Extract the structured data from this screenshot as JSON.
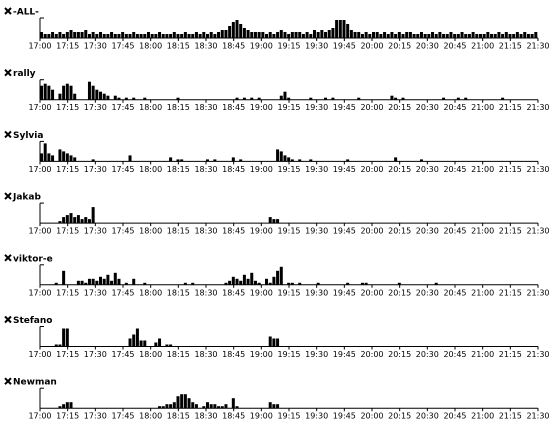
{
  "chart_data": [
    {
      "type": "bar",
      "title": "-ALL-",
      "color": "#000000",
      "ylim": [
        0,
        10
      ],
      "xlim": [
        0,
        270
      ],
      "xticks": [
        {
          "value": 0,
          "label": "17:00"
        },
        {
          "value": 15,
          "label": "17:15"
        },
        {
          "value": 30,
          "label": "17:30"
        },
        {
          "value": 45,
          "label": "17:45"
        },
        {
          "value": 60,
          "label": "18:00"
        },
        {
          "value": 75,
          "label": "18:15"
        },
        {
          "value": 90,
          "label": "18:30"
        },
        {
          "value": 105,
          "label": "18:45"
        },
        {
          "value": 120,
          "label": "19:00"
        },
        {
          "value": 135,
          "label": "19:15"
        },
        {
          "value": 150,
          "label": "19:30"
        },
        {
          "value": 165,
          "label": "19:45"
        },
        {
          "value": 180,
          "label": "20:00"
        },
        {
          "value": 195,
          "label": "20:15"
        },
        {
          "value": 210,
          "label": "20:30"
        },
        {
          "value": 225,
          "label": "20:45"
        },
        {
          "value": 240,
          "label": "21:00"
        },
        {
          "value": 255,
          "label": "21:15"
        },
        {
          "value": 270,
          "label": "21:30"
        }
      ],
      "x": [
        0,
        2,
        4,
        6,
        8,
        10,
        12,
        14,
        16,
        18,
        20,
        22,
        24,
        26,
        28,
        30,
        32,
        34,
        36,
        38,
        40,
        42,
        44,
        46,
        48,
        50,
        52,
        54,
        56,
        58,
        60,
        62,
        64,
        66,
        68,
        70,
        72,
        74,
        76,
        78,
        80,
        82,
        84,
        86,
        88,
        90,
        92,
        94,
        96,
        98,
        100,
        102,
        104,
        106,
        108,
        110,
        112,
        114,
        116,
        118,
        120,
        122,
        124,
        126,
        128,
        130,
        132,
        134,
        136,
        138,
        140,
        142,
        144,
        146,
        148,
        150,
        152,
        154,
        156,
        158,
        160,
        162,
        164,
        166,
        168,
        170,
        172,
        174,
        176,
        178,
        180,
        182,
        184,
        186,
        188,
        190,
        192,
        194,
        196,
        198,
        200,
        202,
        204,
        206,
        208,
        210,
        212,
        214,
        216,
        218,
        220,
        222,
        224,
        226,
        228,
        230,
        232,
        234,
        236,
        238,
        240,
        242,
        244,
        246,
        248,
        250,
        252,
        254,
        256,
        258,
        260,
        262,
        264,
        266,
        268
      ],
      "values": [
        3,
        2,
        2,
        3,
        2,
        3,
        2,
        3,
        4,
        3,
        3,
        3,
        4,
        2,
        3,
        2,
        3,
        2,
        2,
        3,
        2,
        2,
        3,
        2,
        2,
        3,
        2,
        2,
        2,
        3,
        2,
        2,
        3,
        2,
        2,
        2,
        3,
        2,
        2,
        3,
        2,
        2,
        3,
        2,
        3,
        2,
        3,
        2,
        3,
        4,
        4,
        6,
        8,
        9,
        7,
        5,
        4,
        3,
        3,
        3,
        3,
        2,
        3,
        2,
        3,
        4,
        3,
        2,
        3,
        3,
        3,
        2,
        3,
        2,
        4,
        3,
        4,
        3,
        4,
        5,
        9,
        9,
        9,
        7,
        4,
        3,
        3,
        2,
        3,
        2,
        3,
        3,
        2,
        3,
        2,
        3,
        2,
        3,
        2,
        3,
        3,
        2,
        2,
        3,
        2,
        2,
        3,
        2,
        3,
        2,
        2,
        3,
        2,
        2,
        3,
        2,
        2,
        3,
        2,
        2,
        2,
        3,
        2,
        2,
        3,
        2,
        3,
        2,
        2,
        3,
        2,
        3,
        2,
        2,
        3
      ]
    },
    {
      "type": "bar",
      "title": "rally",
      "color": "#000000",
      "ylim": [
        0,
        10
      ],
      "xlim": [
        0,
        270
      ],
      "xticks": [
        {
          "value": 0,
          "label": "17:00"
        },
        {
          "value": 15,
          "label": "17:15"
        },
        {
          "value": 30,
          "label": "17:30"
        },
        {
          "value": 45,
          "label": "17:45"
        },
        {
          "value": 60,
          "label": "18:00"
        },
        {
          "value": 75,
          "label": "18:15"
        },
        {
          "value": 90,
          "label": "18:30"
        },
        {
          "value": 105,
          "label": "18:45"
        },
        {
          "value": 120,
          "label": "19:00"
        },
        {
          "value": 135,
          "label": "19:15"
        },
        {
          "value": 150,
          "label": "19:30"
        },
        {
          "value": 165,
          "label": "19:45"
        },
        {
          "value": 180,
          "label": "20:00"
        },
        {
          "value": 195,
          "label": "20:15"
        },
        {
          "value": 210,
          "label": "20:30"
        },
        {
          "value": 225,
          "label": "20:45"
        },
        {
          "value": 240,
          "label": "21:00"
        },
        {
          "value": 255,
          "label": "21:15"
        },
        {
          "value": 270,
          "label": "21:30"
        }
      ],
      "x": [
        0,
        2,
        4,
        6,
        10,
        12,
        14,
        16,
        18,
        26,
        28,
        30,
        32,
        34,
        36,
        40,
        42,
        46,
        50,
        56,
        74,
        106,
        110,
        114,
        118,
        130,
        132,
        134,
        146,
        154,
        158,
        172,
        190,
        192,
        196,
        218,
        226,
        230,
        250
      ],
      "values": [
        7,
        8,
        7,
        5,
        3,
        7,
        8,
        7,
        3,
        9,
        7,
        5,
        4,
        3,
        2,
        2,
        1,
        1,
        1,
        1,
        1,
        1,
        1,
        1,
        1,
        2,
        4,
        1,
        1,
        1,
        1,
        1,
        2,
        1,
        1,
        1,
        1,
        1,
        1
      ]
    },
    {
      "type": "bar",
      "title": "Sylvia",
      "color": "#000000",
      "ylim": [
        0,
        10
      ],
      "xlim": [
        0,
        270
      ],
      "xticks": [
        {
          "value": 0,
          "label": "17:00"
        },
        {
          "value": 15,
          "label": "17:15"
        },
        {
          "value": 30,
          "label": "17:30"
        },
        {
          "value": 45,
          "label": "17:45"
        },
        {
          "value": 60,
          "label": "18:00"
        },
        {
          "value": 75,
          "label": "18:15"
        },
        {
          "value": 90,
          "label": "18:30"
        },
        {
          "value": 105,
          "label": "18:45"
        },
        {
          "value": 120,
          "label": "19:00"
        },
        {
          "value": 135,
          "label": "19:15"
        },
        {
          "value": 150,
          "label": "19:30"
        },
        {
          "value": 165,
          "label": "19:45"
        },
        {
          "value": 180,
          "label": "20:00"
        },
        {
          "value": 195,
          "label": "20:15"
        },
        {
          "value": 210,
          "label": "20:30"
        },
        {
          "value": 225,
          "label": "20:45"
        },
        {
          "value": 240,
          "label": "21:00"
        },
        {
          "value": 255,
          "label": "21:15"
        },
        {
          "value": 270,
          "label": "21:30"
        }
      ],
      "x": [
        0,
        2,
        4,
        6,
        10,
        12,
        14,
        16,
        18,
        28,
        48,
        70,
        74,
        76,
        90,
        94,
        104,
        108,
        128,
        130,
        132,
        134,
        136,
        140,
        146,
        166,
        192,
        206
      ],
      "values": [
        4,
        9,
        4,
        3,
        6,
        5,
        4,
        3,
        2,
        1,
        3,
        2,
        1,
        1,
        1,
        1,
        2,
        1,
        6,
        5,
        3,
        2,
        1,
        1,
        1,
        1,
        2,
        1
      ]
    },
    {
      "type": "bar",
      "title": "Jakab",
      "color": "#000000",
      "ylim": [
        0,
        10
      ],
      "xlim": [
        0,
        270
      ],
      "xticks": [
        {
          "value": 0,
          "label": "17:00"
        },
        {
          "value": 15,
          "label": "17:15"
        },
        {
          "value": 30,
          "label": "17:30"
        },
        {
          "value": 45,
          "label": "17:45"
        },
        {
          "value": 60,
          "label": "18:00"
        },
        {
          "value": 75,
          "label": "18:15"
        },
        {
          "value": 90,
          "label": "18:30"
        },
        {
          "value": 105,
          "label": "18:45"
        },
        {
          "value": 120,
          "label": "19:00"
        },
        {
          "value": 135,
          "label": "19:15"
        },
        {
          "value": 150,
          "label": "19:30"
        },
        {
          "value": 165,
          "label": "19:45"
        },
        {
          "value": 180,
          "label": "20:00"
        },
        {
          "value": 195,
          "label": "20:15"
        },
        {
          "value": 210,
          "label": "20:30"
        },
        {
          "value": 225,
          "label": "20:45"
        },
        {
          "value": 240,
          "label": "21:00"
        },
        {
          "value": 255,
          "label": "21:15"
        },
        {
          "value": 270,
          "label": "21:30"
        }
      ],
      "x": [
        10,
        12,
        14,
        16,
        18,
        20,
        22,
        24,
        26,
        28,
        124,
        126,
        128
      ],
      "values": [
        1,
        3,
        4,
        5,
        3,
        4,
        2,
        3,
        2,
        8,
        3,
        2,
        2
      ]
    },
    {
      "type": "bar",
      "title": "viktor-e",
      "color": "#000000",
      "ylim": [
        0,
        10
      ],
      "xlim": [
        0,
        270
      ],
      "xticks": [
        {
          "value": 0,
          "label": "17:00"
        },
        {
          "value": 15,
          "label": "17:15"
        },
        {
          "value": 30,
          "label": "17:30"
        },
        {
          "value": 45,
          "label": "17:45"
        },
        {
          "value": 60,
          "label": "18:00"
        },
        {
          "value": 75,
          "label": "18:15"
        },
        {
          "value": 90,
          "label": "18:30"
        },
        {
          "value": 105,
          "label": "18:45"
        },
        {
          "value": 120,
          "label": "19:00"
        },
        {
          "value": 135,
          "label": "19:15"
        },
        {
          "value": 150,
          "label": "19:30"
        },
        {
          "value": 165,
          "label": "19:45"
        },
        {
          "value": 180,
          "label": "20:00"
        },
        {
          "value": 195,
          "label": "20:15"
        },
        {
          "value": 210,
          "label": "20:30"
        },
        {
          "value": 225,
          "label": "20:45"
        },
        {
          "value": 240,
          "label": "21:00"
        },
        {
          "value": 255,
          "label": "21:15"
        },
        {
          "value": 270,
          "label": "21:30"
        }
      ],
      "x": [
        8,
        12,
        20,
        22,
        24,
        26,
        28,
        30,
        32,
        34,
        36,
        38,
        40,
        42,
        46,
        50,
        56,
        78,
        82,
        100,
        102,
        104,
        106,
        108,
        110,
        112,
        114,
        116,
        118,
        122,
        124,
        126,
        128,
        130,
        134,
        136,
        140,
        150,
        166,
        174,
        176,
        194,
        214
      ],
      "values": [
        1,
        7,
        2,
        2,
        1,
        3,
        3,
        2,
        4,
        3,
        5,
        2,
        6,
        3,
        1,
        3,
        1,
        1,
        1,
        1,
        2,
        4,
        3,
        2,
        5,
        3,
        6,
        2,
        1,
        3,
        1,
        4,
        7,
        9,
        1,
        1,
        1,
        1,
        1,
        1,
        1,
        1,
        1
      ]
    },
    {
      "type": "bar",
      "title": "Stefano",
      "color": "#000000",
      "ylim": [
        0,
        10
      ],
      "xlim": [
        0,
        270
      ],
      "xticks": [
        {
          "value": 0,
          "label": "17:00"
        },
        {
          "value": 15,
          "label": "17:15"
        },
        {
          "value": 30,
          "label": "17:30"
        },
        {
          "value": 45,
          "label": "17:45"
        },
        {
          "value": 60,
          "label": "18:00"
        },
        {
          "value": 75,
          "label": "18:15"
        },
        {
          "value": 90,
          "label": "18:30"
        },
        {
          "value": 105,
          "label": "18:45"
        },
        {
          "value": 120,
          "label": "19:00"
        },
        {
          "value": 135,
          "label": "19:15"
        },
        {
          "value": 150,
          "label": "19:30"
        },
        {
          "value": 165,
          "label": "19:45"
        },
        {
          "value": 180,
          "label": "20:00"
        },
        {
          "value": 195,
          "label": "20:15"
        },
        {
          "value": 210,
          "label": "20:30"
        },
        {
          "value": 225,
          "label": "20:45"
        },
        {
          "value": 240,
          "label": "21:00"
        },
        {
          "value": 255,
          "label": "21:15"
        },
        {
          "value": 270,
          "label": "21:30"
        }
      ],
      "x": [
        8,
        10,
        12,
        14,
        48,
        50,
        52,
        54,
        56,
        62,
        64,
        68,
        70,
        124,
        126,
        128
      ],
      "values": [
        1,
        1,
        9,
        9,
        4,
        6,
        9,
        3,
        3,
        2,
        4,
        1,
        1,
        5,
        4,
        4
      ]
    },
    {
      "type": "bar",
      "title": "Newman",
      "color": "#000000",
      "ylim": [
        0,
        10
      ],
      "xlim": [
        0,
        270
      ],
      "xticks": [
        {
          "value": 0,
          "label": "17:00"
        },
        {
          "value": 15,
          "label": "17:15"
        },
        {
          "value": 30,
          "label": "17:30"
        },
        {
          "value": 45,
          "label": "17:45"
        },
        {
          "value": 60,
          "label": "18:00"
        },
        {
          "value": 75,
          "label": "18:15"
        },
        {
          "value": 90,
          "label": "18:30"
        },
        {
          "value": 105,
          "label": "18:45"
        },
        {
          "value": 120,
          "label": "19:00"
        },
        {
          "value": 135,
          "label": "19:15"
        },
        {
          "value": 150,
          "label": "19:30"
        },
        {
          "value": 165,
          "label": "19:45"
        },
        {
          "value": 180,
          "label": "20:00"
        },
        {
          "value": 195,
          "label": "20:15"
        },
        {
          "value": 210,
          "label": "20:30"
        },
        {
          "value": 225,
          "label": "20:45"
        },
        {
          "value": 240,
          "label": "21:00"
        },
        {
          "value": 255,
          "label": "21:15"
        },
        {
          "value": 270,
          "label": "21:30"
        }
      ],
      "x": [
        10,
        12,
        14,
        16,
        64,
        66,
        68,
        70,
        72,
        74,
        76,
        78,
        80,
        82,
        84,
        88,
        90,
        92,
        94,
        96,
        98,
        100,
        104,
        106,
        124,
        126,
        128
      ],
      "values": [
        1,
        2,
        3,
        3,
        1,
        1,
        2,
        2,
        3,
        6,
        7,
        7,
        5,
        3,
        2,
        1,
        3,
        2,
        2,
        1,
        1,
        2,
        5,
        1,
        3,
        2,
        2
      ]
    }
  ]
}
